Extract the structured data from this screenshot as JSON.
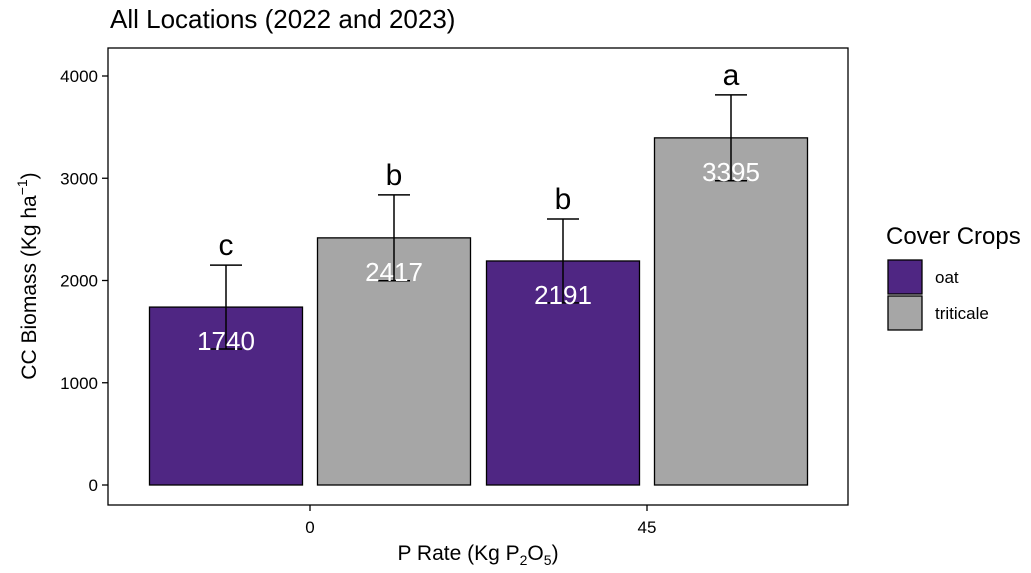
{
  "chart_data": {
    "type": "bar",
    "title": "All Locations (2022 and 2023)",
    "xlabel": "P Rate (Kg P2O5)",
    "ylabel": "CC Biomass (Kg ha-1)",
    "categories": [
      "0",
      "45"
    ],
    "series": [
      {
        "name": "oat",
        "color": "#4f2683",
        "values": [
          1740,
          2191
        ],
        "errors": [
          410,
          410
        ],
        "value_labels": [
          "1740",
          "2191"
        ],
        "letters": [
          "c",
          "b"
        ]
      },
      {
        "name": "triticale",
        "color": "#a6a6a6",
        "values": [
          2417,
          3395
        ],
        "errors": [
          420,
          420
        ],
        "value_labels": [
          "2417",
          "3395"
        ],
        "letters": [
          "b",
          "a"
        ]
      }
    ],
    "ylim": [
      0,
      4200
    ],
    "yticks": [
      0,
      1000,
      2000,
      3000,
      4000
    ],
    "ytick_labels": [
      "0",
      "1000",
      "2000",
      "3000",
      "4000"
    ],
    "grid": false,
    "legend": {
      "title": "Cover Crops",
      "position": "right"
    }
  }
}
